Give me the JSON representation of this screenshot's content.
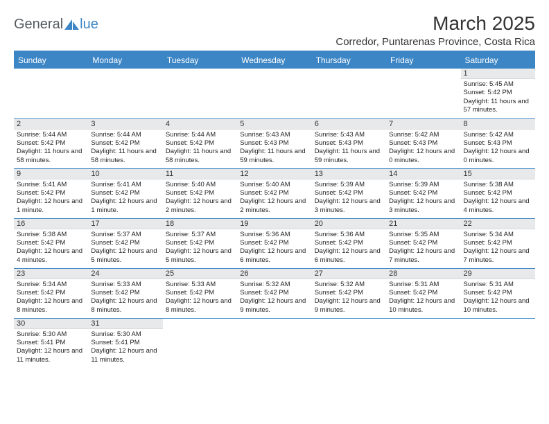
{
  "logo": {
    "part1": "General",
    "part2": "lue"
  },
  "title": "March 2025",
  "location": "Corredor, Puntarenas Province, Costa Rica",
  "colors": {
    "header_bg": "#3d86c6",
    "header_text": "#ffffff",
    "daynum_bg": "#e8e9ea",
    "row_border": "#3d86c6",
    "logo_blue": "#3d86c6",
    "logo_gray": "#555b5f"
  },
  "typography": {
    "title_fontsize": 28,
    "location_fontsize": 15,
    "dayheader_fontsize": 12,
    "cell_fontsize": 9.5
  },
  "day_headers": [
    "Sunday",
    "Monday",
    "Tuesday",
    "Wednesday",
    "Thursday",
    "Friday",
    "Saturday"
  ],
  "weeks": [
    [
      null,
      null,
      null,
      null,
      null,
      null,
      {
        "n": "1",
        "sr": "Sunrise: 5:45 AM",
        "ss": "Sunset: 5:42 PM",
        "dl": "Daylight: 11 hours and 57 minutes."
      }
    ],
    [
      {
        "n": "2",
        "sr": "Sunrise: 5:44 AM",
        "ss": "Sunset: 5:42 PM",
        "dl": "Daylight: 11 hours and 58 minutes."
      },
      {
        "n": "3",
        "sr": "Sunrise: 5:44 AM",
        "ss": "Sunset: 5:42 PM",
        "dl": "Daylight: 11 hours and 58 minutes."
      },
      {
        "n": "4",
        "sr": "Sunrise: 5:44 AM",
        "ss": "Sunset: 5:42 PM",
        "dl": "Daylight: 11 hours and 58 minutes."
      },
      {
        "n": "5",
        "sr": "Sunrise: 5:43 AM",
        "ss": "Sunset: 5:43 PM",
        "dl": "Daylight: 11 hours and 59 minutes."
      },
      {
        "n": "6",
        "sr": "Sunrise: 5:43 AM",
        "ss": "Sunset: 5:43 PM",
        "dl": "Daylight: 11 hours and 59 minutes."
      },
      {
        "n": "7",
        "sr": "Sunrise: 5:42 AM",
        "ss": "Sunset: 5:43 PM",
        "dl": "Daylight: 12 hours and 0 minutes."
      },
      {
        "n": "8",
        "sr": "Sunrise: 5:42 AM",
        "ss": "Sunset: 5:43 PM",
        "dl": "Daylight: 12 hours and 0 minutes."
      }
    ],
    [
      {
        "n": "9",
        "sr": "Sunrise: 5:41 AM",
        "ss": "Sunset: 5:42 PM",
        "dl": "Daylight: 12 hours and 1 minute."
      },
      {
        "n": "10",
        "sr": "Sunrise: 5:41 AM",
        "ss": "Sunset: 5:42 PM",
        "dl": "Daylight: 12 hours and 1 minute."
      },
      {
        "n": "11",
        "sr": "Sunrise: 5:40 AM",
        "ss": "Sunset: 5:42 PM",
        "dl": "Daylight: 12 hours and 2 minutes."
      },
      {
        "n": "12",
        "sr": "Sunrise: 5:40 AM",
        "ss": "Sunset: 5:42 PM",
        "dl": "Daylight: 12 hours and 2 minutes."
      },
      {
        "n": "13",
        "sr": "Sunrise: 5:39 AM",
        "ss": "Sunset: 5:42 PM",
        "dl": "Daylight: 12 hours and 3 minutes."
      },
      {
        "n": "14",
        "sr": "Sunrise: 5:39 AM",
        "ss": "Sunset: 5:42 PM",
        "dl": "Daylight: 12 hours and 3 minutes."
      },
      {
        "n": "15",
        "sr": "Sunrise: 5:38 AM",
        "ss": "Sunset: 5:42 PM",
        "dl": "Daylight: 12 hours and 4 minutes."
      }
    ],
    [
      {
        "n": "16",
        "sr": "Sunrise: 5:38 AM",
        "ss": "Sunset: 5:42 PM",
        "dl": "Daylight: 12 hours and 4 minutes."
      },
      {
        "n": "17",
        "sr": "Sunrise: 5:37 AM",
        "ss": "Sunset: 5:42 PM",
        "dl": "Daylight: 12 hours and 5 minutes."
      },
      {
        "n": "18",
        "sr": "Sunrise: 5:37 AM",
        "ss": "Sunset: 5:42 PM",
        "dl": "Daylight: 12 hours and 5 minutes."
      },
      {
        "n": "19",
        "sr": "Sunrise: 5:36 AM",
        "ss": "Sunset: 5:42 PM",
        "dl": "Daylight: 12 hours and 6 minutes."
      },
      {
        "n": "20",
        "sr": "Sunrise: 5:36 AM",
        "ss": "Sunset: 5:42 PM",
        "dl": "Daylight: 12 hours and 6 minutes."
      },
      {
        "n": "21",
        "sr": "Sunrise: 5:35 AM",
        "ss": "Sunset: 5:42 PM",
        "dl": "Daylight: 12 hours and 7 minutes."
      },
      {
        "n": "22",
        "sr": "Sunrise: 5:34 AM",
        "ss": "Sunset: 5:42 PM",
        "dl": "Daylight: 12 hours and 7 minutes."
      }
    ],
    [
      {
        "n": "23",
        "sr": "Sunrise: 5:34 AM",
        "ss": "Sunset: 5:42 PM",
        "dl": "Daylight: 12 hours and 8 minutes."
      },
      {
        "n": "24",
        "sr": "Sunrise: 5:33 AM",
        "ss": "Sunset: 5:42 PM",
        "dl": "Daylight: 12 hours and 8 minutes."
      },
      {
        "n": "25",
        "sr": "Sunrise: 5:33 AM",
        "ss": "Sunset: 5:42 PM",
        "dl": "Daylight: 12 hours and 8 minutes."
      },
      {
        "n": "26",
        "sr": "Sunrise: 5:32 AM",
        "ss": "Sunset: 5:42 PM",
        "dl": "Daylight: 12 hours and 9 minutes."
      },
      {
        "n": "27",
        "sr": "Sunrise: 5:32 AM",
        "ss": "Sunset: 5:42 PM",
        "dl": "Daylight: 12 hours and 9 minutes."
      },
      {
        "n": "28",
        "sr": "Sunrise: 5:31 AM",
        "ss": "Sunset: 5:42 PM",
        "dl": "Daylight: 12 hours and 10 minutes."
      },
      {
        "n": "29",
        "sr": "Sunrise: 5:31 AM",
        "ss": "Sunset: 5:42 PM",
        "dl": "Daylight: 12 hours and 10 minutes."
      }
    ],
    [
      {
        "n": "30",
        "sr": "Sunrise: 5:30 AM",
        "ss": "Sunset: 5:41 PM",
        "dl": "Daylight: 12 hours and 11 minutes."
      },
      {
        "n": "31",
        "sr": "Sunrise: 5:30 AM",
        "ss": "Sunset: 5:41 PM",
        "dl": "Daylight: 12 hours and 11 minutes."
      },
      null,
      null,
      null,
      null,
      null
    ]
  ]
}
